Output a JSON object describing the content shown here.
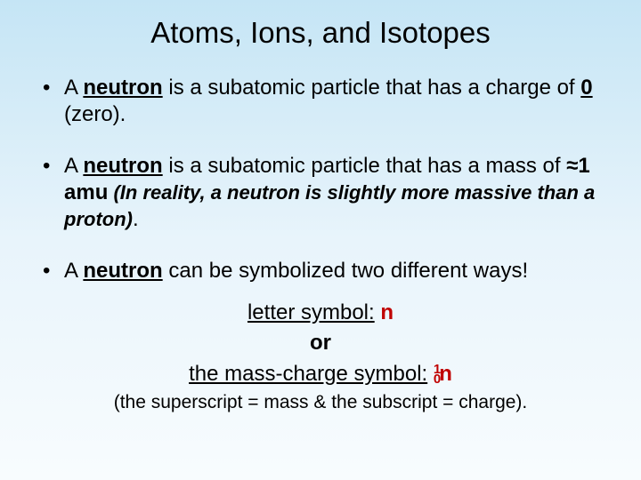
{
  "title": "Atoms, Ions, and Isotopes",
  "bullet1": {
    "prefix": "A ",
    "neutron": "neutron",
    "mid": " is a subatomic particle that has a charge of ",
    "zero": "0",
    "suffix": " (zero)."
  },
  "bullet2": {
    "prefix": "A ",
    "neutron": "neutron",
    "mid": " is a subatomic particle that has a mass of ",
    "approx": "≈1 amu",
    "note1": " (In reality, a neutron is slightly more massive than a proton)",
    "dot": "."
  },
  "bullet3": {
    "prefix": "A ",
    "neutron": "neutron",
    "suffix": " can be symbolized two different ways!"
  },
  "symbols": {
    "letter_label": "letter symbol:",
    "letter_val": " n",
    "or": "or",
    "mass_label": "the mass-charge symbol:",
    "mass_sup": "1",
    "mass_sub": "0",
    "mass_n": "n",
    "paren": "(the superscript = mass & the subscript = charge)."
  },
  "colors": {
    "background_top": "#c5e5f5",
    "background_bottom": "#f8fcfe",
    "text": "#000000",
    "accent": "#c00000"
  },
  "fonts": {
    "title_size": 33,
    "body_size": 24,
    "note_size": 22,
    "paren_size": 21
  }
}
